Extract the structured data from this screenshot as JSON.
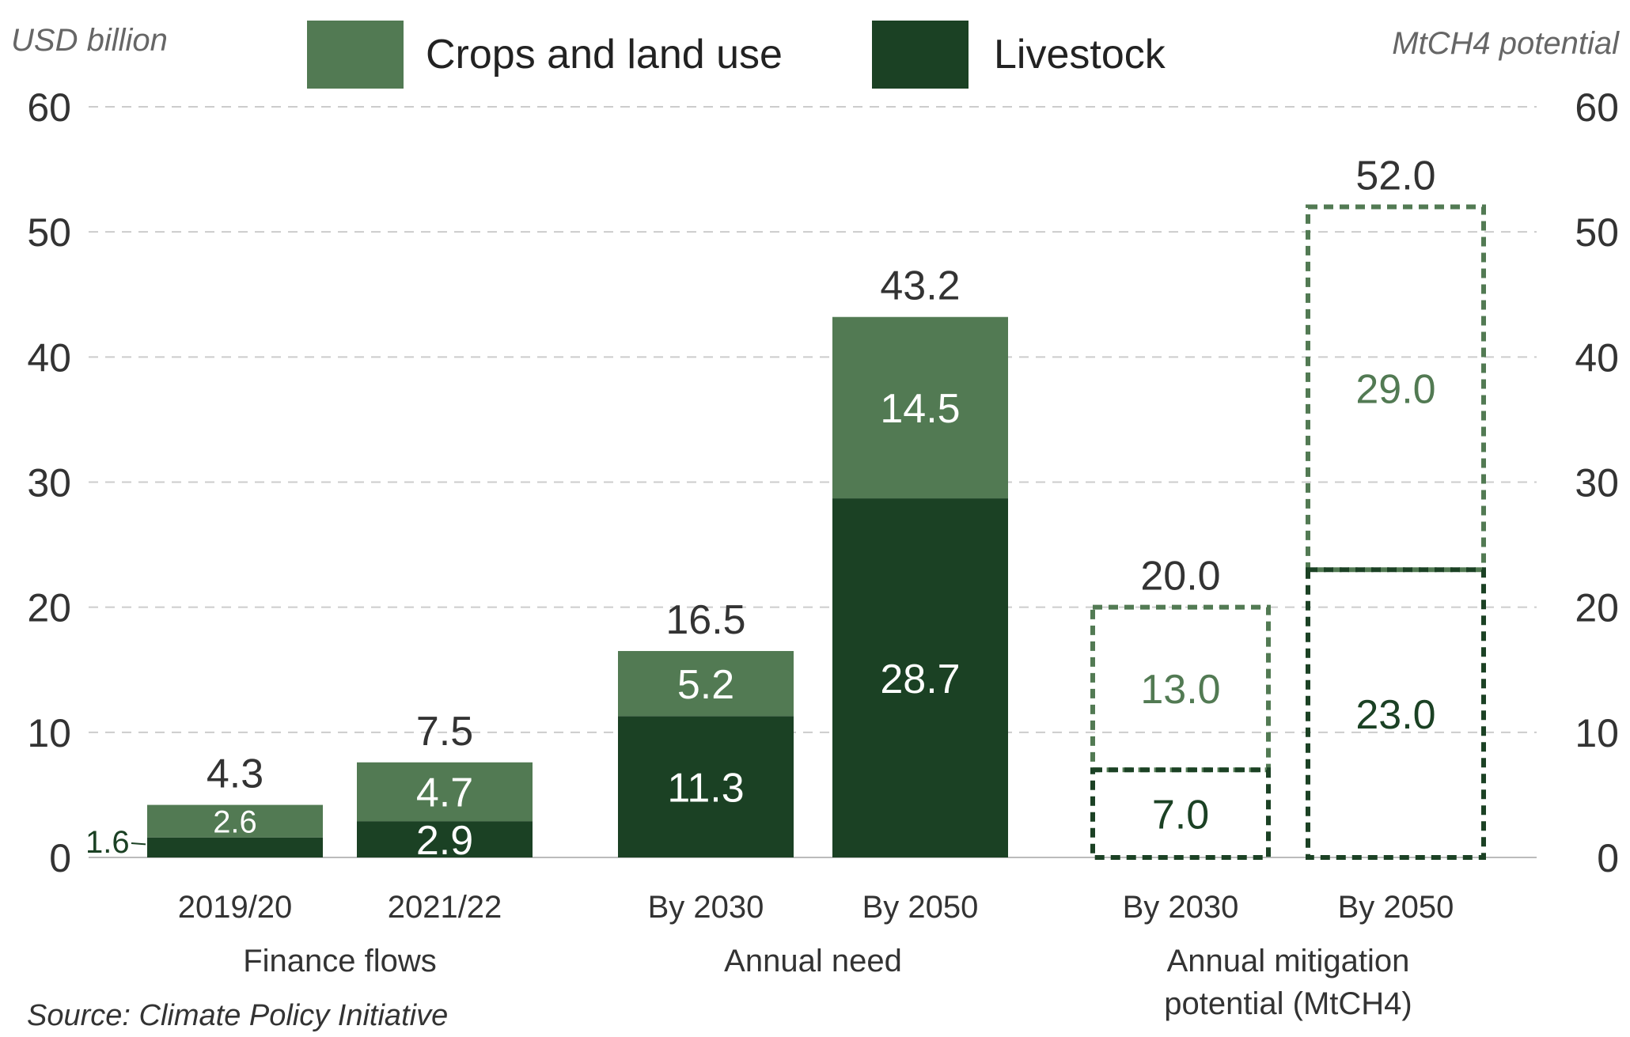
{
  "chart_data": {
    "type": "bar",
    "stacked": true,
    "left_axis_title": "USD billion",
    "right_axis_title": "MtCH4 potential",
    "ylim": [
      0,
      60
    ],
    "yticks": [
      0,
      10,
      20,
      30,
      40,
      50,
      60
    ],
    "grid": true,
    "legend": {
      "placement": "top",
      "entries": [
        {
          "name": "Crops and land use",
          "color": "#527a53"
        },
        {
          "name": "Livestock",
          "color": "#1b4124"
        }
      ]
    },
    "groups": [
      {
        "label": "Finance flows",
        "label_lines": [
          "Finance flows"
        ],
        "categories": [
          "2019/20",
          "2021/22"
        ]
      },
      {
        "label": "Annual need",
        "label_lines": [
          "Annual need"
        ],
        "categories": [
          "By 2030",
          "By 2050"
        ]
      },
      {
        "label": "Annual mitigation potential (MtCH4)",
        "label_lines": [
          "Annual mitigation",
          "potential (MtCH4)"
        ],
        "categories": [
          "By 2030",
          "By 2050"
        ]
      }
    ],
    "categories": [
      "2019/20",
      "2021/22",
      "By 2030",
      "By 2050",
      "By 2030",
      "By 2050"
    ],
    "series": [
      {
        "name": "Livestock",
        "color": "#1b4124",
        "values": [
          1.6,
          2.9,
          11.3,
          28.7,
          7.0,
          23.0
        ]
      },
      {
        "name": "Crops and land use",
        "color": "#527a53",
        "values": [
          2.6,
          4.7,
          5.2,
          14.5,
          13.0,
          29.0
        ]
      }
    ],
    "totals": [
      4.3,
      7.5,
      16.5,
      43.2,
      20.0,
      52.0
    ],
    "value_labels": {
      "Livestock": [
        "1.6",
        "2.9",
        "11.3",
        "28.7",
        "7.0",
        "23.0"
      ],
      "Crops and land use": [
        "2.6",
        "4.7",
        "5.2",
        "14.5",
        "13.0",
        "29.0"
      ],
      "totals": [
        "4.3",
        "7.5",
        "16.5",
        "43.2",
        "20.0",
        "52.0"
      ]
    },
    "dashed_outline_categories": [
      4,
      5
    ],
    "source": "Source: Climate Policy Initiative"
  }
}
